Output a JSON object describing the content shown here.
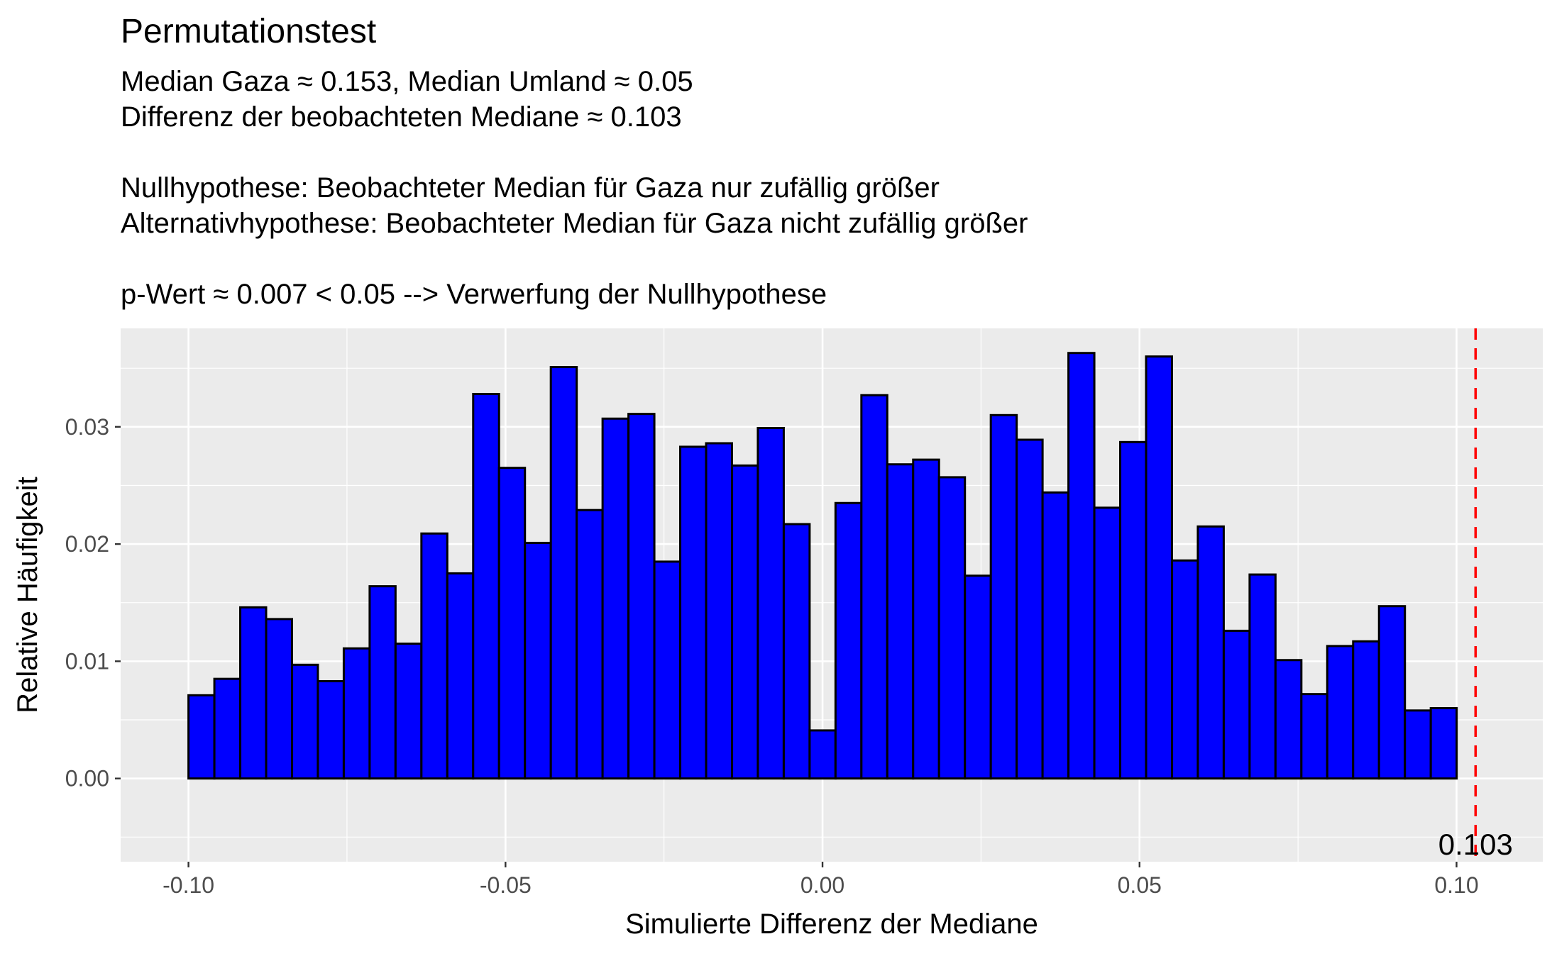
{
  "chart_data": {
    "type": "bar",
    "title": "Permutationstest",
    "subtitle_lines": [
      "Median Gaza ≈ 0.153, Median Umland ≈ 0.05",
      "Differenz der beobachteten Mediane ≈ 0.103",
      "",
      "Nullhypothese: Beobachteter Median für Gaza nur zufällig größer",
      "Alternativhypothese: Beobachteter Median für Gaza nicht zufällig größer",
      "",
      "p-Wert ≈ 0.007 < 0.05 --> Verwerfung der Nullhypothese"
    ],
    "xlabel": "Simulierte Differenz der Mediane",
    "ylabel": "Relative Häufigkeit",
    "xlim": [
      -0.1107,
      0.1136
    ],
    "ylim": [
      -0.0071,
      0.0384
    ],
    "x_ticks": [
      -0.1,
      -0.05,
      0.0,
      0.05,
      0.1
    ],
    "x_tick_labels": [
      "-0.10",
      "-0.05",
      "0.00",
      "0.05",
      "0.10"
    ],
    "y_ticks": [
      0.0,
      0.01,
      0.02,
      0.03
    ],
    "y_tick_labels": [
      "0.00",
      "0.01",
      "0.02",
      "0.03"
    ],
    "grid": true,
    "bin_start": -0.1,
    "bin_width": 0.004082,
    "values": [
      0.0071,
      0.0085,
      0.0146,
      0.0136,
      0.0097,
      0.0083,
      0.0111,
      0.0164,
      0.0115,
      0.0209,
      0.0175,
      0.0328,
      0.0265,
      0.0201,
      0.0351,
      0.0229,
      0.0307,
      0.0311,
      0.0185,
      0.0283,
      0.0286,
      0.0267,
      0.0299,
      0.0217,
      0.0041,
      0.0235,
      0.0327,
      0.0268,
      0.0272,
      0.0257,
      0.0173,
      0.031,
      0.0289,
      0.0244,
      0.0363,
      0.0231,
      0.0287,
      0.036,
      0.0186,
      0.0215,
      0.0126,
      0.0174,
      0.0101,
      0.0072,
      0.0113,
      0.0117,
      0.0147,
      0.0058,
      0.006
    ],
    "bar_fill": "#0000ff",
    "bar_outline": "#000000",
    "panel_background": "#ebebeb",
    "reference_line": {
      "x": 0.103,
      "label": "0.103",
      "color": "#ff0000",
      "style": "dashed"
    }
  }
}
